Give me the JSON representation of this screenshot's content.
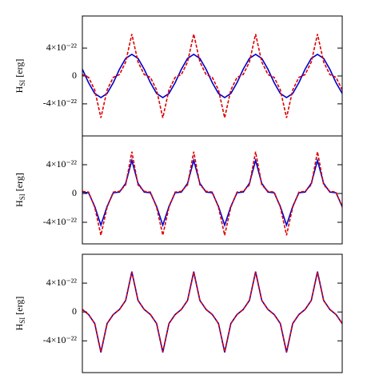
{
  "chart_data": [
    {
      "type": "line",
      "ylabel": "H",
      "ylabel_subscript": "SI",
      "ylabel_unit": " [erg]",
      "x": [
        0,
        0.1,
        0.2,
        0.3,
        0.4,
        0.5,
        0.6,
        0.7,
        0.8,
        0.9,
        1,
        1.1,
        1.2,
        1.3,
        1.4,
        1.5,
        1.6,
        1.7,
        1.8,
        1.9,
        2,
        2.1,
        2.2,
        2.3,
        2.4,
        2.5,
        2.6,
        2.7,
        2.8,
        2.9,
        3,
        3.1,
        3.2,
        3.3,
        3.4,
        3.5,
        3.6,
        3.7,
        3.8,
        3.9,
        4,
        4.1,
        4.2
      ],
      "xlim": [
        0,
        4.2
      ],
      "ylim": [
        -8.6e-22,
        8.6e-22
      ],
      "yticks": [
        {
          "value": -4e-22,
          "label": "-4×10⁻²²"
        },
        0,
        {
          "value": 4e-22,
          "label": "4×10⁻²²"
        }
      ],
      "series": [
        {
          "color": "#0000cc",
          "dash": false,
          "values": [
            9.6e-23,
            -9.6e-23,
            -2.51e-22,
            -3.1e-22,
            -2.51e-22,
            -9.6e-23,
            9.6e-23,
            2.51e-22,
            3.1e-22,
            2.51e-22,
            9.6e-23,
            -9.6e-23,
            -2.51e-22,
            -3.1e-22,
            -2.51e-22,
            -9.6e-23,
            9.6e-23,
            2.51e-22,
            3.1e-22,
            2.51e-22,
            9.6e-23,
            -9.6e-23,
            -2.51e-22,
            -3.1e-22,
            -2.51e-22,
            -9.6e-23,
            9.6e-23,
            2.51e-22,
            3.1e-22,
            2.51e-22,
            9.6e-23,
            -9.6e-23,
            -2.51e-22,
            -3.1e-22,
            -2.51e-22,
            -9.6e-23,
            9.6e-23,
            2.51e-22,
            3.1e-22,
            2.51e-22,
            9.6e-23,
            -9.6e-23,
            -2.51e-22
          ]
        },
        {
          "color": "#dd0000",
          "dash": true,
          "values": [
            2e-23,
            -2e-23,
            -2e-22,
            -6e-22,
            -2e-22,
            -2e-23,
            2e-23,
            2e-22,
            6e-22,
            2e-22,
            2e-23,
            -2e-23,
            -2e-22,
            -6e-22,
            -2e-22,
            -2e-23,
            2e-23,
            2e-22,
            6e-22,
            2e-22,
            2e-23,
            -2e-23,
            -2e-22,
            -6e-22,
            -2e-22,
            -2e-23,
            2e-23,
            2e-22,
            6e-22,
            2e-22,
            2e-23,
            -2e-23,
            -2e-22,
            -6e-22,
            -2e-22,
            -2e-23,
            2e-23,
            2e-22,
            6e-22,
            2e-22,
            2e-23,
            -2e-23,
            -2e-22
          ]
        }
      ]
    },
    {
      "type": "line",
      "ylabel": "H",
      "ylabel_subscript": "SI",
      "ylabel_unit": " [erg]",
      "x": [
        0,
        0.1,
        0.2,
        0.3,
        0.4,
        0.5,
        0.6,
        0.7,
        0.8,
        0.9,
        1,
        1.1,
        1.2,
        1.3,
        1.4,
        1.5,
        1.6,
        1.7,
        1.8,
        1.9,
        2,
        2.1,
        2.2,
        2.3,
        2.4,
        2.5,
        2.6,
        2.7,
        2.8,
        2.9,
        3,
        3.1,
        3.2,
        3.3,
        3.4,
        3.5,
        3.6,
        3.7,
        3.8,
        3.9,
        4,
        4.1,
        4.2
      ],
      "xlim": [
        0,
        4.2
      ],
      "ylim": [
        -7e-22,
        8e-22
      ],
      "yticks": [
        {
          "value": -4e-22,
          "label": "-4×10⁻²²"
        },
        0,
        {
          "value": 4e-22,
          "label": "4×10⁻²²"
        }
      ],
      "series": [
        {
          "color": "#0000cc",
          "dash": false,
          "values": [
            2e-23,
            1e-23,
            -1.8e-22,
            -4.4e-22,
            -1.8e-22,
            1e-23,
            2e-23,
            1.4e-22,
            4.6e-22,
            1.4e-22,
            2e-23,
            1e-23,
            -1.8e-22,
            -4.4e-22,
            -1.8e-22,
            1e-23,
            2e-23,
            1.4e-22,
            4.6e-22,
            1.4e-22,
            2e-23,
            1e-23,
            -1.8e-22,
            -4.4e-22,
            -1.8e-22,
            1e-23,
            2e-23,
            1.4e-22,
            4.6e-22,
            1.4e-22,
            2e-23,
            1e-23,
            -1.8e-22,
            -4.4e-22,
            -1.8e-22,
            1e-23,
            2e-23,
            1.4e-22,
            4.6e-22,
            1.4e-22,
            2e-23,
            1e-23,
            -1.8e-22
          ]
        },
        {
          "color": "#dd0000",
          "dash": true,
          "values": [
            3e-23,
            2e-23,
            -1.9e-22,
            -5.8e-22,
            -1.9e-22,
            2e-23,
            3e-23,
            1.2e-22,
            5.8e-22,
            1.2e-22,
            3e-23,
            2e-23,
            -1.9e-22,
            -5.8e-22,
            -1.9e-22,
            2e-23,
            3e-23,
            1.2e-22,
            5.8e-22,
            1.2e-22,
            3e-23,
            2e-23,
            -1.9e-22,
            -5.8e-22,
            -1.9e-22,
            2e-23,
            3e-23,
            1.2e-22,
            5.8e-22,
            1.2e-22,
            3e-23,
            2e-23,
            -1.9e-22,
            -5.8e-22,
            -1.9e-22,
            2e-23,
            3e-23,
            1.2e-22,
            5.8e-22,
            1.2e-22,
            3e-23,
            2e-23,
            -1.9e-22
          ]
        }
      ]
    },
    {
      "type": "line",
      "ylabel": "H",
      "ylabel_subscript": "SI",
      "ylabel_unit": " [erg]",
      "x": [
        0,
        0.1,
        0.2,
        0.3,
        0.4,
        0.5,
        0.6,
        0.7,
        0.8,
        0.9,
        1,
        1.1,
        1.2,
        1.3,
        1.4,
        1.5,
        1.6,
        1.7,
        1.8,
        1.9,
        2,
        2.1,
        2.2,
        2.3,
        2.4,
        2.5,
        2.6,
        2.7,
        2.8,
        2.9,
        3,
        3.1,
        3.2,
        3.3,
        3.4,
        3.5,
        3.6,
        3.7,
        3.8,
        3.9,
        4,
        4.1,
        4.2
      ],
      "xlim": [
        0,
        4.2
      ],
      "ylim": [
        -8.4e-22,
        8e-22
      ],
      "yticks": [
        {
          "value": -4e-22,
          "label": "-4×10⁻²²"
        },
        0,
        {
          "value": 4e-22,
          "label": "4×10⁻²²"
        }
      ],
      "series": [
        {
          "color": "#0000cc",
          "dash": false,
          "values": [
            3.5e-23,
            -3.5e-23,
            -1.6e-22,
            -5.6e-22,
            -1.6e-22,
            -3.5e-23,
            3.5e-23,
            1.6e-22,
            5.6e-22,
            1.6e-22,
            3.5e-23,
            -3.5e-23,
            -1.6e-22,
            -5.6e-22,
            -1.6e-22,
            -3.5e-23,
            3.5e-23,
            1.6e-22,
            5.6e-22,
            1.6e-22,
            3.5e-23,
            -3.5e-23,
            -1.6e-22,
            -5.6e-22,
            -1.6e-22,
            -3.5e-23,
            3.5e-23,
            1.6e-22,
            5.6e-22,
            1.6e-22,
            3.5e-23,
            -3.5e-23,
            -1.6e-22,
            -5.6e-22,
            -1.6e-22,
            -3.5e-23,
            3.5e-23,
            1.6e-22,
            5.6e-22,
            1.6e-22,
            3.5e-23,
            -3.5e-23,
            -1.6e-22
          ]
        },
        {
          "color": "#dd0000",
          "dash": true,
          "values": [
            3.5e-23,
            -3.5e-23,
            -1.6e-22,
            -5.5e-22,
            -1.6e-22,
            -3.5e-23,
            3.5e-23,
            1.6e-22,
            5.5e-22,
            1.6e-22,
            3.5e-23,
            -3.5e-23,
            -1.6e-22,
            -5.5e-22,
            -1.6e-22,
            -3.5e-23,
            3.5e-23,
            1.6e-22,
            5.5e-22,
            1.6e-22,
            3.5e-23,
            -3.5e-23,
            -1.6e-22,
            -5.5e-22,
            -1.6e-22,
            -3.5e-23,
            3.5e-23,
            1.6e-22,
            5.5e-22,
            1.6e-22,
            3.5e-23,
            -3.5e-23,
            -1.6e-22,
            -5.5e-22,
            -1.6e-22,
            -3.5e-23,
            3.5e-23,
            1.6e-22,
            5.5e-22,
            1.6e-22,
            3.5e-23,
            -3.5e-23,
            -1.6e-22
          ]
        }
      ]
    }
  ]
}
